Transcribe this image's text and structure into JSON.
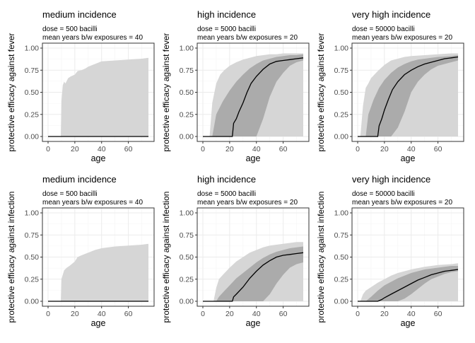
{
  "chart_data": [
    {
      "type": "area",
      "title": "medium incidence",
      "subtitle_lines": [
        "dose = 500 bacilli",
        "mean years b/w exposures = 40"
      ],
      "xlabel": "age",
      "ylabel": "protective efficacy against fever",
      "xlim": [
        0,
        75
      ],
      "ylim": [
        0,
        1
      ],
      "xticks": [
        0,
        20,
        40,
        60
      ],
      "yticks": [
        0,
        0.25,
        0.5,
        0.75,
        1
      ],
      "ytick_labels": [
        "0.00",
        "0.25",
        "0.50",
        "0.75",
        "1.00"
      ],
      "grid": true,
      "series": [
        {
          "role": "outer-band",
          "x": [
            0,
            9.5,
            10,
            11,
            12,
            13,
            15,
            17,
            20,
            22,
            25,
            28,
            30,
            35,
            40,
            50,
            60,
            70,
            75
          ],
          "lower": [
            0,
            0,
            0,
            0,
            0,
            0,
            0,
            0,
            0,
            0,
            0,
            0,
            0,
            0,
            0,
            0,
            0,
            0,
            0
          ],
          "upper": [
            0,
            0,
            0.4,
            0.58,
            0.62,
            0.6,
            0.66,
            0.68,
            0.7,
            0.74,
            0.75,
            0.77,
            0.79,
            0.82,
            0.85,
            0.86,
            0.87,
            0.88,
            0.89
          ]
        },
        {
          "role": "inner-band",
          "x": [
            0,
            75
          ],
          "lower": [
            0,
            0
          ],
          "upper": [
            0,
            0
          ]
        },
        {
          "role": "median",
          "x": [
            0,
            75
          ],
          "y": [
            0,
            0
          ]
        }
      ]
    },
    {
      "type": "area",
      "title": "high incidence",
      "subtitle_lines": [
        "dose = 5000 bacilli",
        "mean years b/w exposures = 20"
      ],
      "xlabel": "age",
      "ylabel": "protective efficacy against fever",
      "xlim": [
        0,
        75
      ],
      "ylim": [
        0,
        1
      ],
      "xticks": [
        0,
        20,
        40,
        60
      ],
      "yticks": [
        0,
        0.25,
        0.5,
        0.75,
        1
      ],
      "ytick_labels": [
        "0.00",
        "0.25",
        "0.50",
        "0.75",
        "1.00"
      ],
      "grid": true,
      "series": [
        {
          "role": "outer-band",
          "x": [
            0,
            5,
            7,
            10,
            13,
            16,
            20,
            25,
            30,
            35,
            40,
            45,
            50,
            55,
            60,
            65,
            70,
            75
          ],
          "lower": [
            0,
            0,
            0,
            0,
            0,
            0,
            0,
            0,
            0,
            0,
            0,
            0,
            0,
            0,
            0,
            0,
            0,
            0
          ],
          "upper": [
            0,
            0,
            0.38,
            0.6,
            0.7,
            0.75,
            0.8,
            0.84,
            0.87,
            0.89,
            0.91,
            0.92,
            0.93,
            0.93,
            0.94,
            0.94,
            0.94,
            0.94
          ]
        },
        {
          "role": "inner-band",
          "x": [
            0,
            7,
            10,
            15,
            20,
            25,
            30,
            35,
            40,
            45,
            50,
            55,
            60,
            65,
            70,
            75
          ],
          "lower": [
            0,
            0,
            0,
            0,
            0,
            0,
            0,
            0,
            0,
            0.2,
            0.45,
            0.62,
            0.72,
            0.8,
            0.84,
            0.86
          ],
          "upper": [
            0,
            0,
            0.25,
            0.4,
            0.52,
            0.62,
            0.7,
            0.77,
            0.82,
            0.86,
            0.88,
            0.9,
            0.91,
            0.92,
            0.92,
            0.93
          ]
        },
        {
          "role": "median",
          "x": [
            0,
            22,
            23,
            25,
            27,
            30,
            33,
            36,
            40,
            45,
            50,
            55,
            60,
            65,
            70,
            75
          ],
          "y": [
            0,
            0,
            0.15,
            0.2,
            0.28,
            0.38,
            0.5,
            0.6,
            0.68,
            0.76,
            0.82,
            0.85,
            0.86,
            0.87,
            0.88,
            0.89
          ]
        }
      ]
    },
    {
      "type": "area",
      "title": "very high incidence",
      "subtitle_lines": [
        "dose = 50000 bacilli",
        "mean years b/w exposures = 20"
      ],
      "xlabel": "age",
      "ylabel": "protective efficacy against fever",
      "xlim": [
        0,
        75
      ],
      "ylim": [
        0,
        1
      ],
      "xticks": [
        0,
        20,
        40,
        60
      ],
      "yticks": [
        0,
        0.25,
        0.5,
        0.75,
        1
      ],
      "ytick_labels": [
        "0.00",
        "0.25",
        "0.50",
        "0.75",
        "1.00"
      ],
      "grid": true,
      "series": [
        {
          "role": "outer-band",
          "x": [
            0,
            2,
            4,
            6,
            8,
            10,
            15,
            20,
            25,
            30,
            35,
            40,
            50,
            60,
            70,
            75
          ],
          "lower": [
            0,
            0,
            0,
            0,
            0,
            0,
            0,
            0,
            0,
            0,
            0,
            0,
            0,
            0,
            0,
            0
          ],
          "upper": [
            0,
            0,
            0.35,
            0.55,
            0.6,
            0.66,
            0.74,
            0.81,
            0.86,
            0.88,
            0.9,
            0.91,
            0.92,
            0.93,
            0.94,
            0.94
          ]
        },
        {
          "role": "inner-band",
          "x": [
            0,
            6,
            8,
            12,
            16,
            20,
            25,
            30,
            35,
            40,
            45,
            50,
            55,
            60,
            70,
            75
          ],
          "lower": [
            0,
            0,
            0,
            0,
            0,
            0,
            0,
            0.1,
            0.28,
            0.5,
            0.62,
            0.7,
            0.76,
            0.8,
            0.84,
            0.86
          ],
          "upper": [
            0,
            0,
            0.25,
            0.42,
            0.55,
            0.64,
            0.72,
            0.78,
            0.82,
            0.85,
            0.87,
            0.88,
            0.89,
            0.9,
            0.91,
            0.92
          ]
        },
        {
          "role": "median",
          "x": [
            0,
            15,
            16,
            18,
            20,
            23,
            26,
            30,
            35,
            40,
            45,
            50,
            55,
            60,
            65,
            70,
            75
          ],
          "y": [
            0,
            0,
            0.12,
            0.2,
            0.3,
            0.42,
            0.53,
            0.62,
            0.7,
            0.75,
            0.79,
            0.82,
            0.84,
            0.86,
            0.88,
            0.89,
            0.9
          ]
        }
      ]
    },
    {
      "type": "area",
      "title": "medium incidence",
      "subtitle_lines": [
        "dose = 500 bacilli",
        "mean years b/w exposures = 40"
      ],
      "xlabel": "age",
      "ylabel": "protective efficacy against infection",
      "xlim": [
        0,
        75
      ],
      "ylim": [
        0,
        1
      ],
      "xticks": [
        0,
        20,
        40,
        60
      ],
      "yticks": [
        0,
        0.25,
        0.5,
        0.75,
        1
      ],
      "ytick_labels": [
        "0.00",
        "0.25",
        "0.50",
        "0.75",
        "1.00"
      ],
      "grid": true,
      "series": [
        {
          "role": "outer-band",
          "x": [
            0,
            9.5,
            10,
            11,
            12,
            14,
            16,
            20,
            22,
            25,
            30,
            35,
            40,
            50,
            60,
            70,
            75
          ],
          "lower": [
            0,
            0,
            0,
            0,
            0,
            0,
            0,
            0,
            0,
            0,
            0,
            0,
            0,
            0,
            0,
            0,
            0
          ],
          "upper": [
            0,
            0,
            0.25,
            0.3,
            0.35,
            0.38,
            0.4,
            0.45,
            0.5,
            0.52,
            0.55,
            0.58,
            0.6,
            0.62,
            0.63,
            0.64,
            0.65
          ]
        },
        {
          "role": "inner-band",
          "x": [
            0,
            75
          ],
          "lower": [
            0,
            0
          ],
          "upper": [
            0,
            0
          ]
        },
        {
          "role": "median",
          "x": [
            0,
            75
          ],
          "y": [
            0,
            0
          ]
        }
      ]
    },
    {
      "type": "area",
      "title": "high incidence",
      "subtitle_lines": [
        "dose = 5000 bacilli",
        "mean years b/w exposures = 20"
      ],
      "xlabel": "age",
      "ylabel": "protective efficacy against infection",
      "xlim": [
        0,
        75
      ],
      "ylim": [
        0,
        1
      ],
      "xticks": [
        0,
        20,
        40,
        60
      ],
      "yticks": [
        0,
        0.25,
        0.5,
        0.75,
        1
      ],
      "ytick_labels": [
        "0.00",
        "0.25",
        "0.50",
        "0.75",
        "1.00"
      ],
      "grid": true,
      "series": [
        {
          "role": "outer-band",
          "x": [
            0,
            8,
            10,
            12,
            15,
            20,
            25,
            30,
            35,
            40,
            45,
            50,
            55,
            60,
            65,
            70,
            75
          ],
          "lower": [
            0,
            0,
            0,
            0,
            0,
            0,
            0,
            0,
            0,
            0,
            0,
            0,
            0,
            0,
            0,
            0,
            0
          ],
          "upper": [
            0,
            0,
            0.15,
            0.25,
            0.3,
            0.38,
            0.45,
            0.5,
            0.55,
            0.58,
            0.61,
            0.63,
            0.64,
            0.65,
            0.66,
            0.67,
            0.67
          ]
        },
        {
          "role": "inner-band",
          "x": [
            0,
            10,
            12,
            15,
            20,
            25,
            30,
            35,
            40,
            45,
            50,
            55,
            60,
            65,
            70,
            75
          ],
          "lower": [
            0,
            0,
            0,
            0,
            0,
            0,
            0,
            0,
            0,
            0,
            0.08,
            0.2,
            0.3,
            0.38,
            0.42,
            0.44
          ],
          "upper": [
            0,
            0,
            0.05,
            0.1,
            0.18,
            0.26,
            0.32,
            0.38,
            0.44,
            0.49,
            0.53,
            0.56,
            0.58,
            0.6,
            0.61,
            0.62
          ]
        },
        {
          "role": "median",
          "x": [
            0,
            22,
            23,
            25,
            30,
            35,
            40,
            45,
            50,
            55,
            60,
            65,
            70,
            75
          ],
          "y": [
            0,
            0,
            0.05,
            0.08,
            0.16,
            0.26,
            0.34,
            0.41,
            0.46,
            0.5,
            0.52,
            0.53,
            0.54,
            0.55
          ]
        }
      ]
    },
    {
      "type": "area",
      "title": "very high incidence",
      "subtitle_lines": [
        "dose = 50000 bacilli",
        "mean years b/w exposures = 20"
      ],
      "xlabel": "age",
      "ylabel": "protective efficacy against infection",
      "xlim": [
        0,
        75
      ],
      "ylim": [
        0,
        1
      ],
      "xticks": [
        0,
        20,
        40,
        60
      ],
      "yticks": [
        0,
        0.25,
        0.5,
        0.75,
        1
      ],
      "ytick_labels": [
        "0.00",
        "0.25",
        "0.50",
        "0.75",
        "1.00"
      ],
      "grid": true,
      "series": [
        {
          "role": "outer-band",
          "x": [
            0,
            2,
            4,
            6,
            10,
            15,
            20,
            25,
            30,
            35,
            40,
            50,
            60,
            70,
            75
          ],
          "lower": [
            0,
            0,
            0,
            0,
            0,
            0,
            0,
            0,
            0,
            0,
            0,
            0,
            0,
            0,
            0
          ],
          "upper": [
            0,
            0,
            0.08,
            0.12,
            0.16,
            0.21,
            0.25,
            0.29,
            0.32,
            0.34,
            0.36,
            0.39,
            0.41,
            0.42,
            0.43
          ]
        },
        {
          "role": "inner-band",
          "x": [
            0,
            6,
            10,
            15,
            20,
            25,
            30,
            35,
            40,
            45,
            50,
            55,
            60,
            65,
            70,
            75
          ],
          "lower": [
            0,
            0,
            0,
            0,
            0,
            0,
            0,
            0.03,
            0.08,
            0.14,
            0.2,
            0.25,
            0.28,
            0.31,
            0.33,
            0.34
          ],
          "upper": [
            0,
            0,
            0.05,
            0.12,
            0.18,
            0.22,
            0.26,
            0.29,
            0.32,
            0.34,
            0.36,
            0.37,
            0.38,
            0.39,
            0.4,
            0.4
          ]
        },
        {
          "role": "median",
          "x": [
            0,
            15,
            18,
            20,
            25,
            30,
            35,
            40,
            45,
            50,
            55,
            60,
            65,
            70,
            75
          ],
          "y": [
            0,
            0,
            0.02,
            0.04,
            0.08,
            0.12,
            0.16,
            0.2,
            0.24,
            0.27,
            0.3,
            0.32,
            0.34,
            0.35,
            0.36
          ]
        }
      ]
    }
  ],
  "colors": {
    "outer_band": "#d6d6d6",
    "inner_band": "#ababab",
    "median_line": "#000000",
    "panel_border": "#333333",
    "grid_major": "#ebebeb",
    "grid_minor": "#f5f5f5",
    "tick_text": "#4d4d4d"
  }
}
